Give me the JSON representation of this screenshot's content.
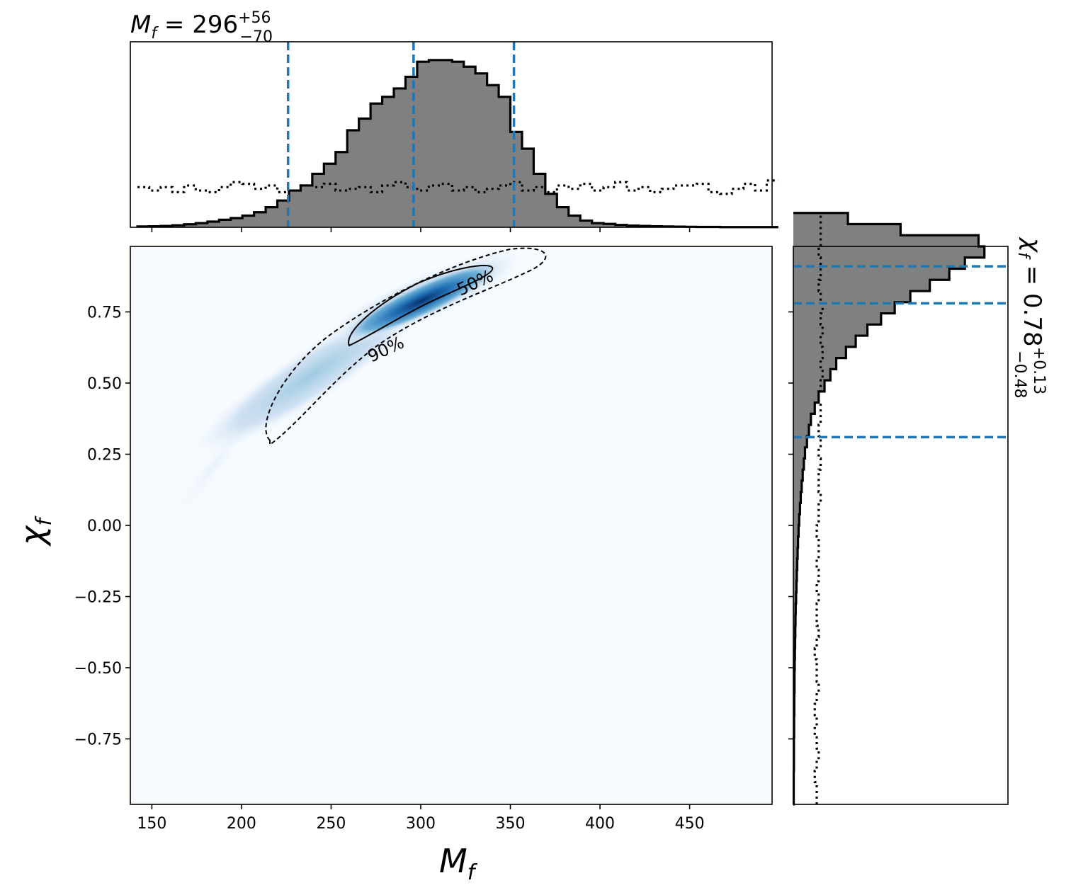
{
  "chart_data": [
    {
      "panel": "marginal-mf",
      "type": "histogram",
      "title": {
        "base": "M",
        "sub": "f",
        "eq": " = 296",
        "sup": "+56",
        "low": "−70"
      },
      "xlim": [
        138,
        496
      ],
      "bin_edges_start": 142,
      "bin_width": 6.5,
      "posterior_density": [
        0.005,
        0.006,
        0.008,
        0.012,
        0.018,
        0.025,
        0.034,
        0.045,
        0.055,
        0.07,
        0.09,
        0.12,
        0.16,
        0.22,
        0.25,
        0.32,
        0.38,
        0.45,
        0.58,
        0.65,
        0.74,
        0.78,
        0.83,
        0.9,
        0.99,
        1.0,
        1.0,
        0.99,
        0.96,
        0.92,
        0.85,
        0.78,
        0.57,
        0.47,
        0.32,
        0.2,
        0.12,
        0.07,
        0.04,
        0.025,
        0.02,
        0.014,
        0.01,
        0.008,
        0.006,
        0.005,
        0.004,
        0.003,
        0.002,
        0.002,
        0.001,
        0.001,
        0.001,
        0.001,
        0.001
      ],
      "prior_density": [
        0.24,
        0.22,
        0.24,
        0.21,
        0.25,
        0.22,
        0.21,
        0.24,
        0.27,
        0.26,
        0.23,
        0.25,
        0.21,
        0.22,
        0.25,
        0.24,
        0.26,
        0.22,
        0.23,
        0.24,
        0.21,
        0.25,
        0.27,
        0.24,
        0.22,
        0.25,
        0.26,
        0.22,
        0.24,
        0.21,
        0.23,
        0.25,
        0.27,
        0.22,
        0.24,
        0.21,
        0.25,
        0.23,
        0.26,
        0.22,
        0.24,
        0.27,
        0.22,
        0.24,
        0.21,
        0.23,
        0.25,
        0.25,
        0.26,
        0.21,
        0.2,
        0.23,
        0.26,
        0.22,
        0.28
      ],
      "quantile_lines": [
        226,
        296,
        352
      ],
      "ylim": [
        0,
        1.05
      ]
    },
    {
      "panel": "joint-mf-chif",
      "type": "heatmap",
      "x_ticks": [
        150,
        200,
        250,
        300,
        350,
        400,
        450
      ],
      "y_ticks": [
        "0.75",
        "0.50",
        "0.25",
        "0.00",
        "−0.25",
        "−0.50",
        "−0.75"
      ],
      "y_tick_values": [
        0.75,
        0.5,
        0.25,
        0.0,
        -0.25,
        -0.5,
        -0.75
      ],
      "xlim": [
        138,
        496
      ],
      "ylim": [
        -0.98,
        0.98
      ],
      "density_peak": {
        "x": 310,
        "y": 0.82
      },
      "contours": [
        {
          "label": "50%",
          "style": "solid"
        },
        {
          "label": "90%",
          "style": "dashed"
        }
      ],
      "xlabel": {
        "base": "M",
        "sub": "f"
      },
      "ylabel": {
        "base": "χ",
        "sub": "f"
      }
    },
    {
      "panel": "marginal-chif",
      "type": "histogram",
      "orientation": "horizontal",
      "title": {
        "base": "χ",
        "sub": "f",
        "eq": " = 0.78",
        "sup": "+0.13",
        "low": "−0.48"
      },
      "ylim": [
        -0.98,
        0.98
      ],
      "bin_edges_start": -0.98,
      "bin_width": 0.0392,
      "posterior_density": [
        0.002,
        0.002,
        0.002,
        0.003,
        0.003,
        0.003,
        0.004,
        0.004,
        0.005,
        0.005,
        0.006,
        0.006,
        0.007,
        0.008,
        0.009,
        0.01,
        0.011,
        0.012,
        0.014,
        0.016,
        0.018,
        0.02,
        0.022,
        0.024,
        0.027,
        0.03,
        0.034,
        0.038,
        0.043,
        0.048,
        0.054,
        0.06,
        0.07,
        0.08,
        0.09,
        0.11,
        0.13,
        0.16,
        0.19,
        0.22,
        0.27,
        0.32,
        0.38,
        0.45,
        0.52,
        0.6,
        0.7,
        0.8,
        0.88,
        0.98,
        0.95,
        0.55,
        0.28
      ],
      "prior_density": [
        0.12,
        0.12,
        0.11,
        0.12,
        0.13,
        0.12,
        0.11,
        0.12,
        0.11,
        0.12,
        0.13,
        0.12,
        0.12,
        0.11,
        0.12,
        0.13,
        0.12,
        0.12,
        0.13,
        0.12,
        0.13,
        0.12,
        0.13,
        0.13,
        0.12,
        0.13,
        0.13,
        0.14,
        0.13,
        0.13,
        0.14,
        0.13,
        0.14,
        0.13,
        0.14,
        0.14,
        0.13,
        0.14,
        0.15,
        0.14,
        0.15,
        0.14,
        0.15,
        0.14,
        0.15,
        0.14,
        0.13,
        0.14,
        0.14,
        0.13,
        0.14,
        0.14,
        0.14
      ],
      "quantile_lines": [
        0.31,
        0.78,
        0.91
      ],
      "xlim": [
        0,
        1.05
      ]
    }
  ],
  "colors": {
    "hist_fill": "#808080",
    "hist_edge": "#000000",
    "quantile": "#1f77b4",
    "heat_low": "#f7fbff",
    "heat_high": "#08306b"
  }
}
